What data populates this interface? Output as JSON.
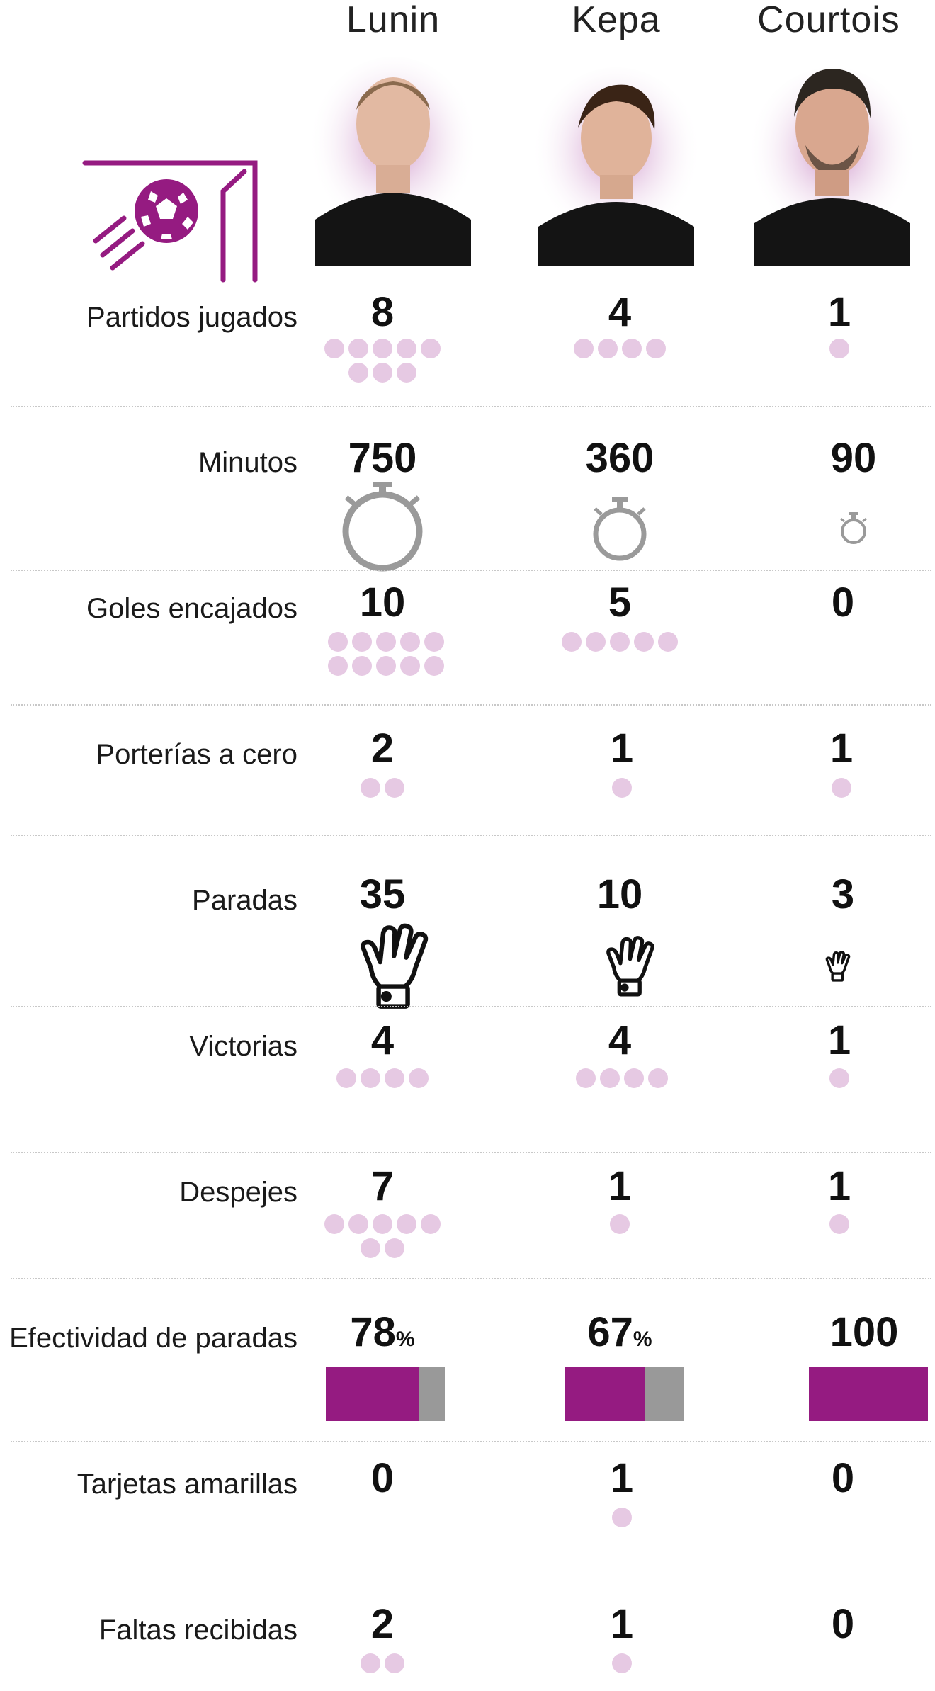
{
  "accent_color": "#951b81",
  "dot_color": "#e6c9e3",
  "bar_rest_color": "#999999",
  "header_icon": "goalkeeper-goal-ball-icon",
  "players": [
    {
      "name": "Lunin"
    },
    {
      "name": "Kepa"
    },
    {
      "name": "Courtois"
    }
  ],
  "stats": [
    {
      "label": "Partidos jugados",
      "display": "dots",
      "values": [
        "8",
        "4",
        "1"
      ]
    },
    {
      "label": "Minutos",
      "display": "stopwatch",
      "values": [
        "750",
        "360",
        "90"
      ]
    },
    {
      "label": "Goles encajados",
      "display": "dots",
      "values": [
        "10",
        "5",
        "0"
      ]
    },
    {
      "label": "Porterías a cero",
      "display": "dots",
      "values": [
        "2",
        "1",
        "1"
      ]
    },
    {
      "label": "Paradas",
      "display": "glove",
      "values": [
        "35",
        "10",
        "3"
      ]
    },
    {
      "label": "Victorias",
      "display": "dots",
      "values": [
        "4",
        "4",
        "1"
      ]
    },
    {
      "label": "Despejes",
      "display": "dots",
      "values": [
        "7",
        "1",
        "1"
      ]
    },
    {
      "label": "Efectividad de paradas",
      "display": "bar",
      "values": [
        "78",
        "67",
        "100"
      ],
      "units": [
        "%",
        "%",
        ""
      ]
    },
    {
      "label": "Tarjetas amarillas",
      "display": "dots",
      "values": [
        "0",
        "1",
        "0"
      ]
    },
    {
      "label": "Faltas recibidas",
      "display": "dots",
      "values": [
        "2",
        "1",
        "0"
      ]
    }
  ]
}
